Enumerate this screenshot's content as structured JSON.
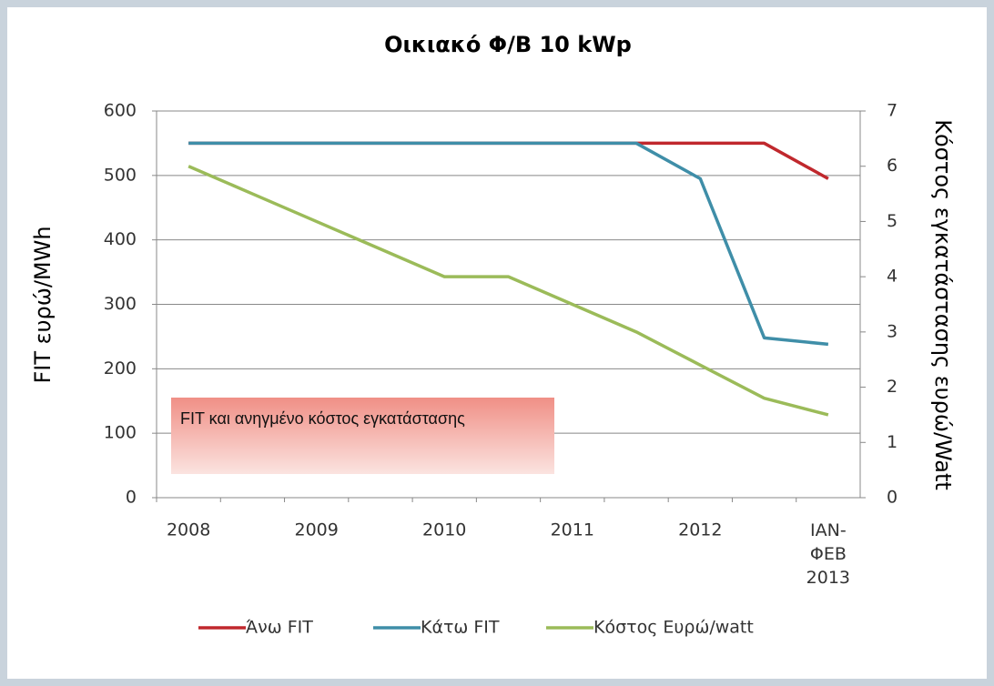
{
  "chart_data": {
    "type": "line",
    "title": "Οικιακό Φ/Β 10 kWp",
    "y_label": "FIT ευρώ/MWh",
    "y2_label": "Κόστος εγκατάστασης ευρώ/Watt",
    "annotation": "FIT και ανηγμένο κόστος εγκατάστασης",
    "categories": [
      "2008",
      null,
      "2009",
      null,
      "2010",
      null,
      "2011",
      null,
      "2012",
      null,
      "IAN- ΦΕΒ 2013"
    ],
    "series": [
      {
        "name": "Άνω FIT",
        "color": "#c0282d",
        "values": [
          550,
          550,
          550,
          550,
          550,
          550,
          550,
          550,
          550,
          550,
          495
        ]
      },
      {
        "name": "Κάτω FIT",
        "color": "#3f8ea8",
        "values": [
          550,
          550,
          550,
          550,
          550,
          550,
          550,
          550,
          495,
          248,
          238
        ]
      },
      {
        "name": "Κόστος Ευρώ/watt",
        "color": "#9bbb59",
        "axis": "y2",
        "values": [
          6.0,
          5.5,
          5.0,
          4.5,
          4.0,
          4.0,
          3.5,
          3.0,
          2.4,
          1.8,
          1.5
        ]
      }
    ],
    "ylim": [
      0,
      600
    ],
    "yticks": [
      0,
      100,
      200,
      300,
      400,
      500,
      600
    ],
    "y2lim": [
      0,
      7
    ],
    "y2ticks": [
      0,
      1,
      2,
      3,
      4,
      5,
      6,
      7
    ],
    "grid": true,
    "legend": "bottom"
  }
}
